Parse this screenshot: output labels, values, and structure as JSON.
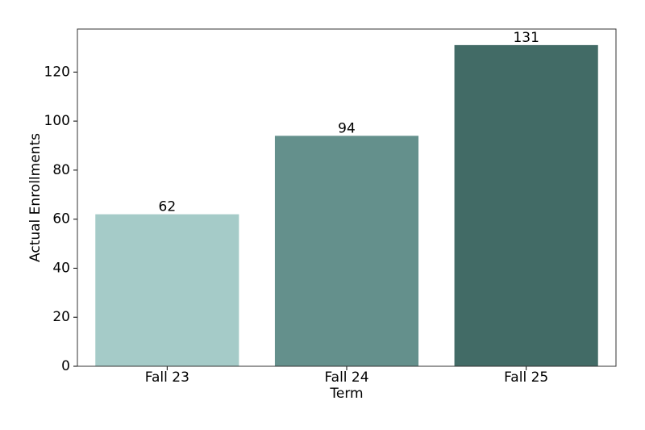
{
  "chart_data": {
    "type": "bar",
    "x_label": "Term",
    "y_label": "Actual Enrollments",
    "categories": [
      "Fall 23",
      "Fall 24",
      "Fall 25"
    ],
    "values": [
      62,
      94,
      131
    ],
    "colors": [
      "#a5cbc8",
      "#64908c",
      "#426b66"
    ],
    "ylim": [
      0,
      137.55
    ],
    "yticks": [
      0,
      20,
      40,
      60,
      80,
      100,
      120
    ],
    "grid": false
  }
}
